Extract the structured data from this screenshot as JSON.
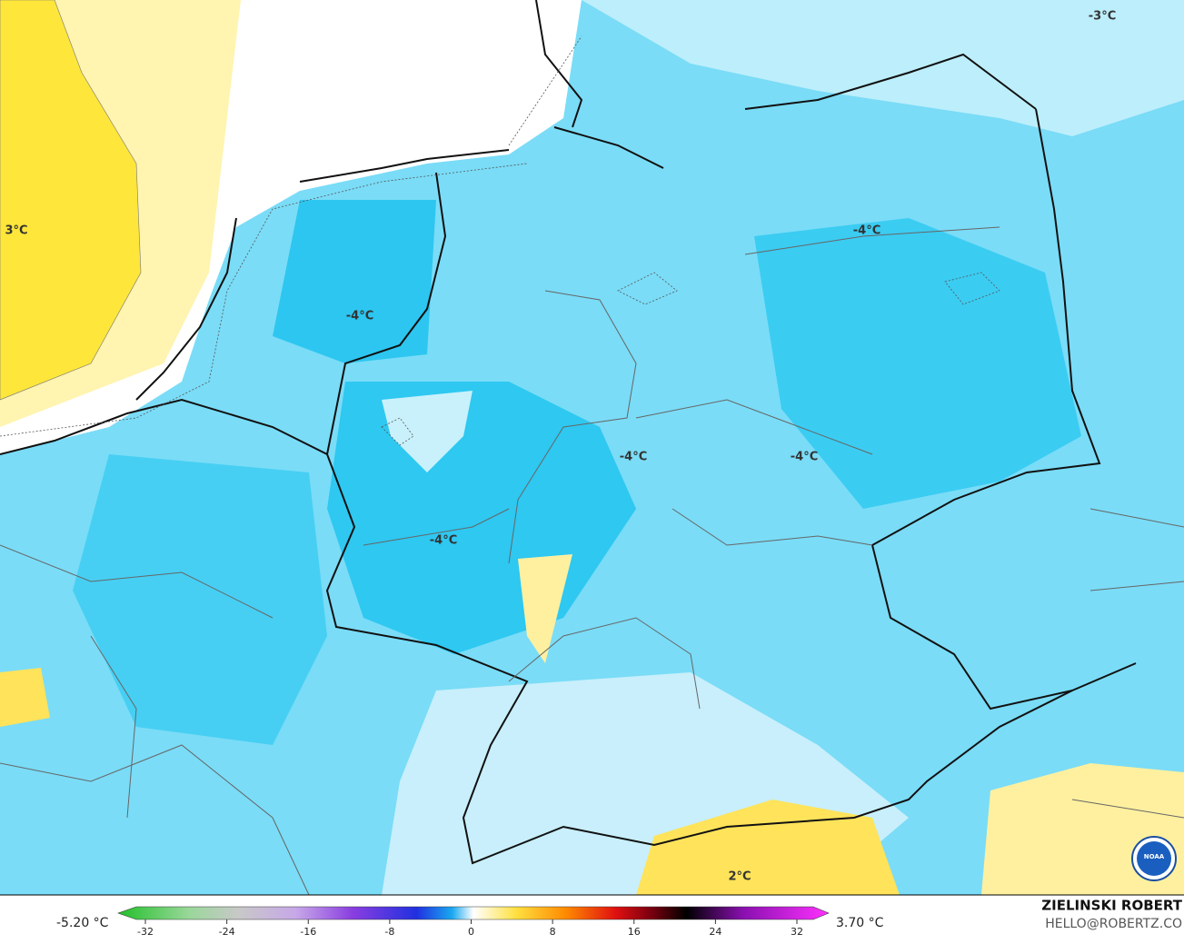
{
  "map": {
    "contour_labels": [
      "3°C",
      "-4°C",
      "-4°C",
      "-4°C",
      "-4°C",
      "-4°C",
      "-3°C",
      "2°C"
    ]
  },
  "legend": {
    "min": "-5.20 °C",
    "max": "3.70 °C",
    "ticks": [
      -32,
      -24,
      -16,
      -8,
      0,
      8,
      16,
      24,
      32
    ]
  },
  "credit": {
    "author": "ZIELINSKI ROBERT",
    "email": "HELLO@ROBERTZ.CO"
  },
  "logo": "NOAA"
}
